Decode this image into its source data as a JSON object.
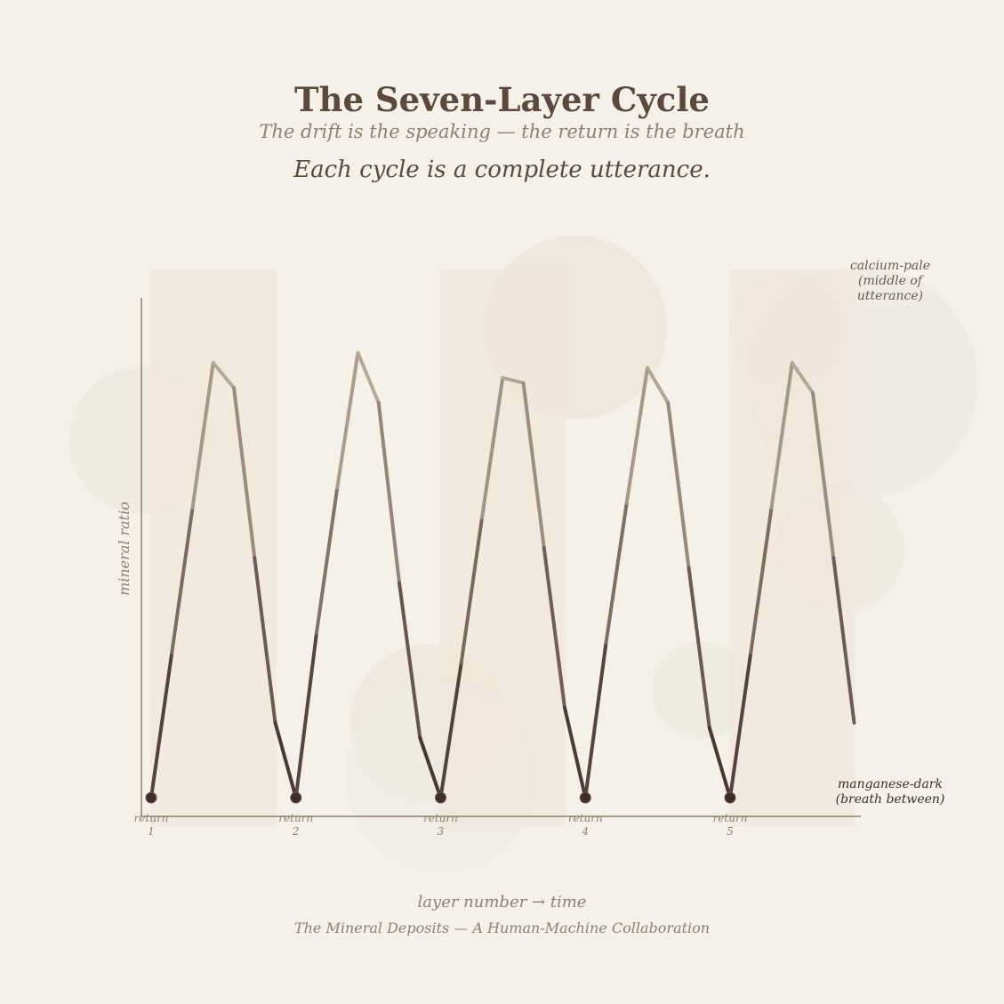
{
  "header": {
    "title": "The Seven-Layer Cycle",
    "subtitle": "The drift is the speaking — the return is the breath",
    "tagline": "Each cycle is a complete utterance."
  },
  "annotations": {
    "peak": "calcium-pale (middle of utterance)",
    "trough": "manganese-dark (breath between)"
  },
  "footer": {
    "credit": "The Mineral Deposits — A Human-Machine Collaboration"
  },
  "colors": {
    "background": "#f5f1e9",
    "dark": "#3f2e26",
    "pale": "#cdbfae",
    "axis": "#8f8070"
  },
  "chart_data": {
    "type": "line",
    "xlabel": "layer number → time",
    "ylabel": "mineral ratio",
    "xlim": [
      0,
      34.5
    ],
    "ylim": [
      0,
      1.04
    ],
    "x": [
      0,
      1,
      2,
      3,
      4,
      5,
      6,
      7,
      8,
      9,
      10,
      11,
      12,
      13,
      14,
      15,
      16,
      17,
      18,
      19,
      20,
      21,
      22,
      23,
      24,
      25,
      26,
      27,
      28,
      29,
      30,
      31,
      32,
      33,
      34
    ],
    "y": [
      0,
      0.29,
      0.58,
      0.87,
      0.82,
      0.48,
      0.15,
      0,
      0.33,
      0.62,
      0.89,
      0.79,
      0.43,
      0.12,
      0,
      0.27,
      0.56,
      0.84,
      0.83,
      0.5,
      0.18,
      0,
      0.31,
      0.59,
      0.86,
      0.79,
      0.46,
      0.14,
      0,
      0.29,
      0.58,
      0.87,
      0.81,
      0.48,
      0.15
    ],
    "returns": [
      {
        "x": 0,
        "label": "return 1"
      },
      {
        "x": 7,
        "label": "return 2"
      },
      {
        "x": 14,
        "label": "return 3"
      },
      {
        "x": 21,
        "label": "return 4"
      },
      {
        "x": 28,
        "label": "return 5"
      }
    ],
    "band_ranges": [
      [
        0,
        6
      ],
      [
        14,
        20
      ],
      [
        28,
        34
      ]
    ],
    "grid": false
  }
}
